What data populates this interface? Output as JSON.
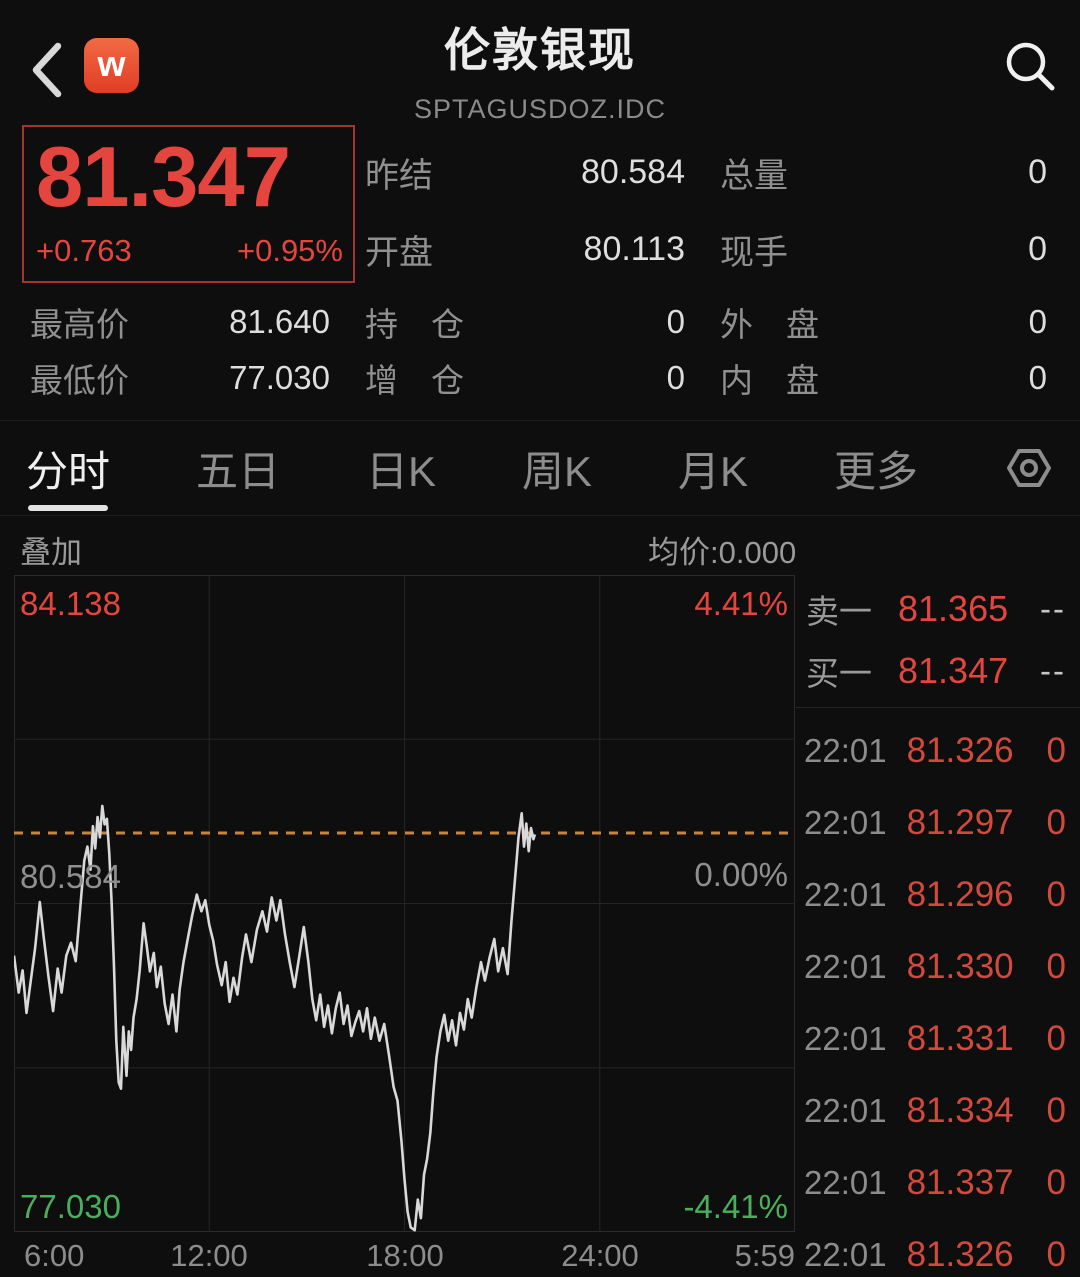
{
  "header": {
    "logo_text": "w",
    "title": "伦敦银现",
    "subtitle": "SPTAGUSDOZ.IDC"
  },
  "quote": {
    "price": "81.347",
    "change": "+0.763",
    "change_pct": "+0.95%",
    "stats_row1": [
      {
        "label": "昨结",
        "value": "80.584"
      },
      {
        "label": "总量",
        "value": "0"
      }
    ],
    "stats_row2": [
      {
        "label": "开盘",
        "value": "80.113"
      },
      {
        "label": "现手",
        "value": "0"
      }
    ],
    "stats_row3": [
      {
        "label": "最高价",
        "value": "81.640"
      },
      {
        "label": "持　仓",
        "value": "0"
      },
      {
        "label": "外　盘",
        "value": "0"
      }
    ],
    "stats_row4": [
      {
        "label": "最低价",
        "value": "77.030"
      },
      {
        "label": "增　仓",
        "value": "0"
      },
      {
        "label": "内　盘",
        "value": "0"
      }
    ]
  },
  "tabs": {
    "items": [
      "分时",
      "五日",
      "日K",
      "周K",
      "月K",
      "更多"
    ],
    "active": "分时"
  },
  "toolbar": {
    "overlay": "叠加",
    "avg_price": "均价:0.000"
  },
  "chart_data": {
    "type": "line",
    "title": "分时 intraday price line",
    "ylim": [
      77.03,
      84.138
    ],
    "prev_close": 80.584,
    "current_price": 81.347,
    "grid": {
      "v_divisions": 4,
      "h_divisions": 4,
      "grid_on": true
    },
    "y_labels": {
      "top_price": "84.138",
      "top_pct": "4.41%",
      "mid_price": "80.584",
      "mid_pct": "0.00%",
      "bottom_price": "77.030",
      "bottom_pct": "-4.41%"
    },
    "x_axis_labels": [
      "6:00",
      "12:00",
      "18:00",
      "24:00",
      "5:59"
    ],
    "series": [
      {
        "name": "price",
        "x": [
          0.0,
          0.006,
          0.011,
          0.016,
          0.021,
          0.027,
          0.033,
          0.038,
          0.044,
          0.05,
          0.056,
          0.061,
          0.067,
          0.073,
          0.079,
          0.085,
          0.09,
          0.094,
          0.098,
          0.101,
          0.104,
          0.107,
          0.11,
          0.113,
          0.116,
          0.119,
          0.122,
          0.125,
          0.128,
          0.131,
          0.134,
          0.137,
          0.14,
          0.144,
          0.147,
          0.15,
          0.153,
          0.157,
          0.161,
          0.166,
          0.17,
          0.174,
          0.179,
          0.183,
          0.188,
          0.193,
          0.198,
          0.203,
          0.208,
          0.212,
          0.217,
          0.222,
          0.228,
          0.234,
          0.24,
          0.245,
          0.25,
          0.255,
          0.26,
          0.266,
          0.271,
          0.276,
          0.281,
          0.286,
          0.292,
          0.297,
          0.304,
          0.311,
          0.318,
          0.324,
          0.33,
          0.336,
          0.341,
          0.347,
          0.353,
          0.359,
          0.365,
          0.371,
          0.377,
          0.382,
          0.387,
          0.392,
          0.397,
          0.402,
          0.407,
          0.412,
          0.417,
          0.422,
          0.427,
          0.432,
          0.437,
          0.442,
          0.447,
          0.452,
          0.457,
          0.462,
          0.468,
          0.474,
          0.48,
          0.486,
          0.491,
          0.496,
          0.5,
          0.504,
          0.508,
          0.513,
          0.517,
          0.521,
          0.525,
          0.529,
          0.533,
          0.537,
          0.541,
          0.546,
          0.551,
          0.556,
          0.561,
          0.566,
          0.571,
          0.576,
          0.581,
          0.586,
          0.592,
          0.598,
          0.603,
          0.609,
          0.615,
          0.62,
          0.626,
          0.632,
          0.637,
          0.642,
          0.646,
          0.65,
          0.653,
          0.656,
          0.659,
          0.662,
          0.665,
          0.667
        ],
        "values": [
          80.02,
          79.62,
          79.86,
          79.4,
          79.72,
          80.1,
          80.6,
          80.22,
          79.8,
          79.42,
          79.88,
          79.62,
          80.02,
          80.16,
          79.96,
          80.56,
          81.05,
          81.2,
          80.95,
          81.42,
          81.18,
          81.52,
          81.3,
          81.64,
          81.44,
          81.5,
          81.12,
          80.6,
          79.9,
          79.1,
          78.65,
          78.58,
          79.25,
          78.72,
          79.2,
          79.0,
          79.35,
          79.55,
          79.86,
          80.37,
          80.12,
          79.85,
          80.05,
          79.68,
          79.9,
          79.5,
          79.28,
          79.6,
          79.2,
          79.65,
          79.95,
          80.18,
          80.45,
          80.68,
          80.5,
          80.62,
          80.35,
          80.18,
          79.92,
          79.7,
          79.95,
          79.52,
          79.78,
          79.6,
          80.0,
          80.25,
          79.95,
          80.3,
          80.5,
          80.28,
          80.65,
          80.4,
          80.62,
          80.25,
          79.95,
          79.68,
          80.0,
          80.33,
          79.95,
          79.55,
          79.32,
          79.6,
          79.25,
          79.48,
          79.18,
          79.45,
          79.62,
          79.28,
          79.48,
          79.15,
          79.3,
          79.42,
          79.2,
          79.45,
          79.12,
          79.35,
          79.1,
          79.28,
          78.95,
          78.6,
          78.45,
          78.02,
          77.6,
          77.25,
          77.08,
          77.05,
          77.38,
          77.18,
          77.65,
          77.82,
          78.1,
          78.55,
          78.92,
          79.2,
          79.38,
          79.1,
          79.32,
          79.05,
          79.4,
          79.22,
          79.55,
          79.35,
          79.68,
          79.95,
          79.75,
          80.0,
          80.2,
          79.85,
          80.1,
          79.82,
          80.4,
          80.9,
          81.3,
          81.56,
          81.2,
          81.45,
          81.15,
          81.4,
          81.28,
          81.33
        ]
      }
    ]
  },
  "order_book": {
    "ask": {
      "label": "卖一",
      "price": "81.365",
      "volume": "--"
    },
    "bid": {
      "label": "买一",
      "price": "81.347",
      "volume": "--"
    },
    "ticks": [
      {
        "time": "22:01",
        "price": "81.326",
        "vol": "0"
      },
      {
        "time": "22:01",
        "price": "81.297",
        "vol": "0"
      },
      {
        "time": "22:01",
        "price": "81.296",
        "vol": "0"
      },
      {
        "time": "22:01",
        "price": "81.330",
        "vol": "0"
      },
      {
        "time": "22:01",
        "price": "81.331",
        "vol": "0"
      },
      {
        "time": "22:01",
        "price": "81.334",
        "vol": "0"
      },
      {
        "time": "22:01",
        "price": "81.337",
        "vol": "0"
      },
      {
        "time": "22:01",
        "price": "81.326",
        "vol": "0"
      }
    ]
  },
  "colors": {
    "up_red": "#e5453f",
    "tick_red": "#d14a3e",
    "down_green": "#4bae5c",
    "avg_line_orange": "#c8863c",
    "label_gray": "#8f8f8f",
    "logo_orange": "#e8502f"
  }
}
